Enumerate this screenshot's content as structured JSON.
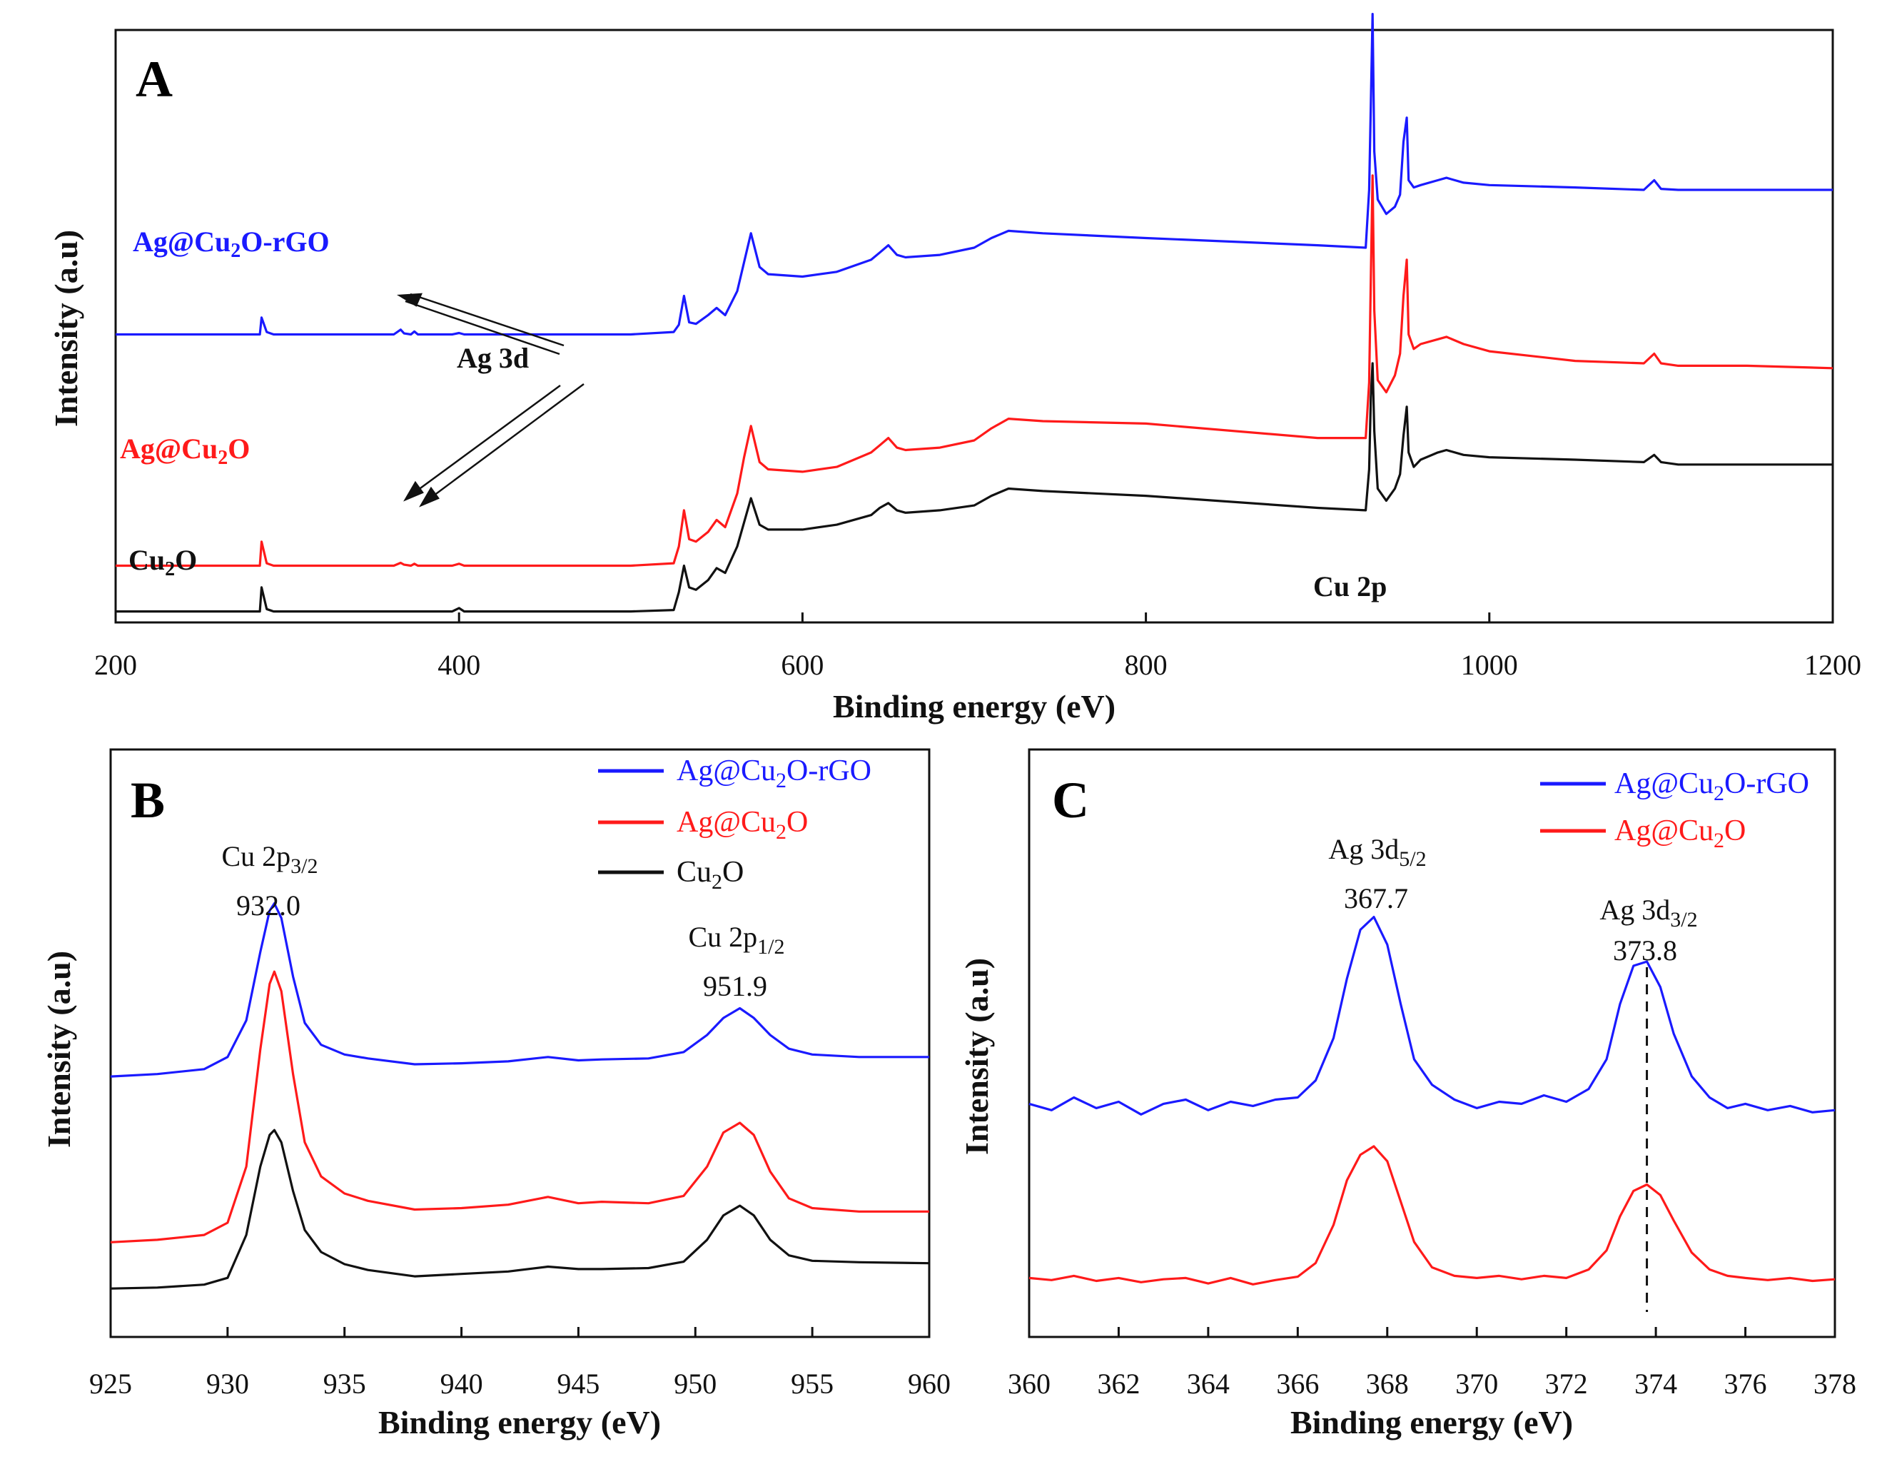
{
  "colors": {
    "rgo": "#1a1aff",
    "ag": "#ff1a1a",
    "cu2o": "#111111"
  },
  "chart_data": [
    {
      "panel": "A",
      "type": "line",
      "title": "A",
      "xlabel": "Binding energy (eV)",
      "ylabel": "Intensity (a.u)",
      "xlim": [
        200,
        1200
      ],
      "xticks": [
        200,
        400,
        600,
        800,
        1000,
        1200
      ],
      "ylim": [
        0,
        12
      ],
      "yticks_shown": false,
      "series": [
        {
          "name": "Ag@Cu2O-rGO",
          "label_parts": [
            "Ag@Cu",
            "2",
            "O-rGO"
          ],
          "color": "#1a1aff",
          "x": [
            200,
            284,
            285,
            288,
            292,
            300,
            362,
            366,
            368,
            372,
            374,
            376,
            380,
            396,
            400,
            403,
            420,
            500,
            525,
            528,
            531,
            534,
            538,
            545,
            550,
            555,
            562,
            566,
            570,
            575,
            580,
            600,
            620,
            640,
            645,
            650,
            655,
            660,
            680,
            700,
            710,
            720,
            740,
            800,
            900,
            928,
            930,
            931,
            932,
            933,
            935,
            940,
            945,
            948,
            950,
            951.9,
            953,
            956,
            960,
            970,
            975,
            985,
            1000,
            1050,
            1090,
            1096,
            1100,
            1110,
            1150,
            1200
          ],
          "values": [
            5.8,
            5.8,
            6.15,
            5.85,
            5.8,
            5.8,
            5.8,
            5.9,
            5.82,
            5.8,
            5.86,
            5.8,
            5.8,
            5.8,
            5.83,
            5.8,
            5.8,
            5.8,
            5.85,
            6.0,
            6.6,
            6.05,
            6.02,
            6.2,
            6.35,
            6.2,
            6.7,
            7.3,
            7.9,
            7.2,
            7.05,
            7.0,
            7.1,
            7.35,
            7.5,
            7.65,
            7.45,
            7.4,
            7.45,
            7.6,
            7.8,
            7.95,
            7.9,
            7.8,
            7.65,
            7.6,
            8.8,
            10.6,
            12.45,
            9.6,
            8.6,
            8.3,
            8.45,
            8.7,
            9.8,
            10.3,
            9.0,
            8.85,
            8.9,
            9.0,
            9.05,
            8.95,
            8.9,
            8.85,
            8.8,
            9.0,
            8.82,
            8.8,
            8.8,
            8.8
          ]
        },
        {
          "name": "Ag@Cu2O",
          "label_parts": [
            "Ag@Cu",
            "2",
            "O"
          ],
          "color": "#ff1a1a",
          "x": [
            200,
            284,
            285,
            288,
            292,
            300,
            362,
            366,
            368,
            372,
            374,
            376,
            380,
            396,
            400,
            403,
            420,
            500,
            525,
            528,
            531,
            534,
            538,
            545,
            550,
            555,
            562,
            566,
            570,
            575,
            580,
            600,
            620,
            640,
            645,
            650,
            655,
            660,
            680,
            700,
            710,
            720,
            740,
            800,
            900,
            928,
            930,
            931,
            932,
            933,
            935,
            940,
            945,
            948,
            950,
            951.9,
            953,
            956,
            960,
            970,
            975,
            985,
            1000,
            1050,
            1090,
            1096,
            1100,
            1110,
            1150,
            1200
          ],
          "values": [
            1.0,
            1.0,
            1.5,
            1.05,
            1.0,
            1.0,
            1.0,
            1.06,
            1.02,
            1.0,
            1.04,
            1.0,
            1.0,
            1.0,
            1.04,
            1.0,
            1.0,
            1.0,
            1.05,
            1.4,
            2.15,
            1.55,
            1.5,
            1.7,
            1.95,
            1.8,
            2.5,
            3.25,
            3.9,
            3.15,
            3.0,
            2.95,
            3.05,
            3.35,
            3.5,
            3.65,
            3.45,
            3.4,
            3.45,
            3.6,
            3.85,
            4.05,
            4.0,
            3.95,
            3.65,
            3.65,
            4.8,
            7.0,
            9.1,
            6.3,
            4.85,
            4.6,
            4.95,
            5.4,
            6.6,
            7.35,
            5.8,
            5.5,
            5.6,
            5.7,
            5.75,
            5.6,
            5.45,
            5.25,
            5.2,
            5.4,
            5.2,
            5.15,
            5.15,
            5.1
          ]
        },
        {
          "name": "Cu2O",
          "label_parts": [
            "Cu",
            "2",
            "O"
          ],
          "color": "#111111",
          "x": [
            200,
            284,
            285,
            288,
            292,
            300,
            362,
            366,
            368,
            372,
            374,
            376,
            380,
            396,
            400,
            403,
            420,
            500,
            525,
            528,
            531,
            534,
            538,
            545,
            550,
            555,
            562,
            566,
            570,
            575,
            580,
            600,
            620,
            640,
            645,
            650,
            655,
            660,
            680,
            700,
            710,
            720,
            740,
            800,
            900,
            928,
            930,
            931,
            932,
            933,
            935,
            940,
            945,
            948,
            950,
            951.9,
            953,
            956,
            960,
            970,
            975,
            985,
            1000,
            1050,
            1090,
            1096,
            1100,
            1110,
            1150,
            1200
          ],
          "values": [
            0.05,
            0.05,
            0.55,
            0.1,
            0.05,
            0.05,
            0.05,
            0.05,
            0.05,
            0.05,
            0.05,
            0.05,
            0.05,
            0.05,
            0.12,
            0.05,
            0.05,
            0.05,
            0.08,
            0.45,
            1.0,
            0.55,
            0.5,
            0.7,
            0.95,
            0.85,
            1.4,
            1.9,
            2.4,
            1.85,
            1.75,
            1.75,
            1.85,
            2.05,
            2.2,
            2.3,
            2.15,
            2.1,
            2.15,
            2.25,
            2.45,
            2.6,
            2.55,
            2.45,
            2.2,
            2.15,
            3.0,
            4.5,
            5.2,
            3.8,
            2.6,
            2.35,
            2.6,
            2.9,
            3.7,
            4.3,
            3.35,
            3.05,
            3.2,
            3.35,
            3.4,
            3.3,
            3.25,
            3.2,
            3.15,
            3.3,
            3.15,
            3.1,
            3.1,
            3.1
          ]
        }
      ],
      "annotations": [
        {
          "text": "Ag 3d",
          "x": 437,
          "y": 5.15
        },
        {
          "text": "Cu 2p",
          "x": 927,
          "y": 0.75
        }
      ]
    },
    {
      "panel": "B",
      "type": "line",
      "title": "B",
      "xlabel": "Binding energy (eV)",
      "ylabel": "Intensity (a.u)",
      "xlim": [
        925,
        960
      ],
      "xticks": [
        925,
        930,
        935,
        940,
        945,
        950,
        955,
        960
      ],
      "ylim": [
        0,
        10
      ],
      "yticks_shown": false,
      "series": [
        {
          "name": "Ag@Cu2O-rGO",
          "label_parts": [
            "Ag@Cu",
            "2",
            "O-rGO"
          ],
          "color": "#1a1aff",
          "x": [
            925,
            927,
            929,
            930,
            930.8,
            931.4,
            931.8,
            932,
            932.3,
            932.8,
            933.3,
            934,
            935,
            936,
            938,
            940,
            942,
            943.7,
            945,
            946,
            948,
            949.5,
            950.5,
            951.2,
            951.9,
            952.5,
            953.2,
            954,
            955,
            957,
            960
          ],
          "values": [
            5.05,
            5.1,
            5.2,
            5.45,
            6.2,
            7.6,
            8.45,
            8.6,
            8.3,
            7.1,
            6.15,
            5.7,
            5.5,
            5.42,
            5.3,
            5.32,
            5.36,
            5.45,
            5.38,
            5.4,
            5.42,
            5.55,
            5.9,
            6.25,
            6.45,
            6.25,
            5.9,
            5.62,
            5.5,
            5.45,
            5.45
          ]
        },
        {
          "name": "Ag@Cu2O",
          "label_parts": [
            "Ag@Cu",
            "2",
            "O"
          ],
          "color": "#ff1a1a",
          "x": [
            925,
            927,
            929,
            930,
            930.8,
            931.4,
            931.8,
            932,
            932.3,
            932.8,
            933.3,
            934,
            935,
            936,
            938,
            940,
            942,
            943.7,
            945,
            946,
            948,
            949.5,
            950.5,
            951.2,
            951.9,
            952.5,
            953.2,
            954,
            955,
            957,
            960
          ],
          "values": [
            1.65,
            1.7,
            1.8,
            2.05,
            3.2,
            5.6,
            6.95,
            7.2,
            6.8,
            5.1,
            3.7,
            3.0,
            2.65,
            2.5,
            2.32,
            2.35,
            2.42,
            2.58,
            2.45,
            2.48,
            2.45,
            2.6,
            3.2,
            3.9,
            4.1,
            3.85,
            3.1,
            2.55,
            2.35,
            2.28,
            2.28
          ]
        },
        {
          "name": "Cu2O",
          "label_parts": [
            "Cu",
            "2",
            "O"
          ],
          "color": "#111111",
          "x": [
            925,
            927,
            929,
            930,
            930.8,
            931.4,
            931.8,
            932,
            932.3,
            932.8,
            933.3,
            934,
            935,
            936,
            938,
            940,
            942,
            943.7,
            945,
            946,
            948,
            949.5,
            950.5,
            951.2,
            951.9,
            952.5,
            953.2,
            954,
            955,
            957,
            960
          ],
          "values": [
            0.7,
            0.72,
            0.78,
            0.92,
            1.8,
            3.2,
            3.85,
            3.95,
            3.7,
            2.7,
            1.9,
            1.45,
            1.2,
            1.08,
            0.95,
            1.0,
            1.05,
            1.15,
            1.1,
            1.1,
            1.12,
            1.25,
            1.7,
            2.2,
            2.4,
            2.2,
            1.7,
            1.38,
            1.27,
            1.24,
            1.22
          ]
        }
      ],
      "annotations": [
        {
          "text_parts": [
            "Cu 2p",
            "3/2"
          ],
          "value": "932.0",
          "x": 932.0
        },
        {
          "text_parts": [
            "Cu 2p",
            "1/2"
          ],
          "value": "951.9",
          "x": 951.9
        }
      ]
    },
    {
      "panel": "C",
      "type": "line",
      "title": "C",
      "xlabel": "Binding energy (eV)",
      "ylabel": "Intensity (a.u)",
      "xlim": [
        360,
        378
      ],
      "xticks": [
        360,
        362,
        364,
        366,
        368,
        370,
        372,
        374,
        376,
        378
      ],
      "ylim": [
        0,
        10
      ],
      "yticks_shown": false,
      "series": [
        {
          "name": "Ag@Cu2O-rGO",
          "label_parts": [
            "Ag@Cu",
            "2",
            "O-rGO"
          ],
          "color": "#1a1aff",
          "x": [
            360,
            360.5,
            361,
            361.5,
            362,
            362.5,
            363,
            363.5,
            364,
            364.5,
            365,
            365.5,
            366,
            366.4,
            366.8,
            367.1,
            367.4,
            367.7,
            368.0,
            368.3,
            368.6,
            369,
            369.5,
            370,
            370.5,
            371,
            371.5,
            372,
            372.5,
            372.9,
            373.2,
            373.5,
            373.8,
            374.1,
            374.4,
            374.8,
            375.2,
            375.6,
            376,
            376.5,
            377,
            377.5,
            378
          ],
          "values": [
            4.85,
            4.7,
            5.0,
            4.75,
            4.9,
            4.6,
            4.85,
            4.95,
            4.7,
            4.9,
            4.8,
            4.95,
            5.0,
            5.4,
            6.4,
            7.8,
            8.95,
            9.25,
            8.6,
            7.2,
            5.9,
            5.3,
            4.95,
            4.75,
            4.9,
            4.85,
            5.05,
            4.9,
            5.2,
            5.9,
            7.2,
            8.1,
            8.2,
            7.6,
            6.5,
            5.5,
            5.0,
            4.75,
            4.85,
            4.7,
            4.8,
            4.65,
            4.7
          ]
        },
        {
          "name": "Ag@Cu2O",
          "label_parts": [
            "Ag@Cu",
            "2",
            "O"
          ],
          "color": "#ff1a1a",
          "x": [
            360,
            360.5,
            361,
            361.5,
            362,
            362.5,
            363,
            363.5,
            364,
            364.5,
            365,
            365.5,
            366,
            366.4,
            366.8,
            367.1,
            367.4,
            367.7,
            368.0,
            368.3,
            368.6,
            369,
            369.5,
            370,
            370.5,
            371,
            371.5,
            372,
            372.5,
            372.9,
            373.2,
            373.5,
            373.8,
            374.1,
            374.4,
            374.8,
            375.2,
            375.6,
            376,
            376.5,
            377,
            377.5,
            378
          ],
          "values": [
            0.75,
            0.7,
            0.8,
            0.68,
            0.75,
            0.65,
            0.72,
            0.75,
            0.62,
            0.75,
            0.6,
            0.7,
            0.78,
            1.1,
            2.0,
            3.05,
            3.65,
            3.85,
            3.5,
            2.55,
            1.6,
            1.0,
            0.8,
            0.75,
            0.8,
            0.72,
            0.8,
            0.75,
            0.95,
            1.4,
            2.2,
            2.8,
            2.95,
            2.7,
            2.1,
            1.35,
            0.95,
            0.8,
            0.75,
            0.7,
            0.75,
            0.68,
            0.72
          ]
        }
      ],
      "annotations": [
        {
          "text_parts": [
            "Ag 3d",
            "5/2"
          ],
          "value": "367.7",
          "x": 367.7
        },
        {
          "text_parts": [
            "Ag 3d",
            "3/2"
          ],
          "value": "373.8",
          "x": 373.8
        }
      ]
    }
  ]
}
